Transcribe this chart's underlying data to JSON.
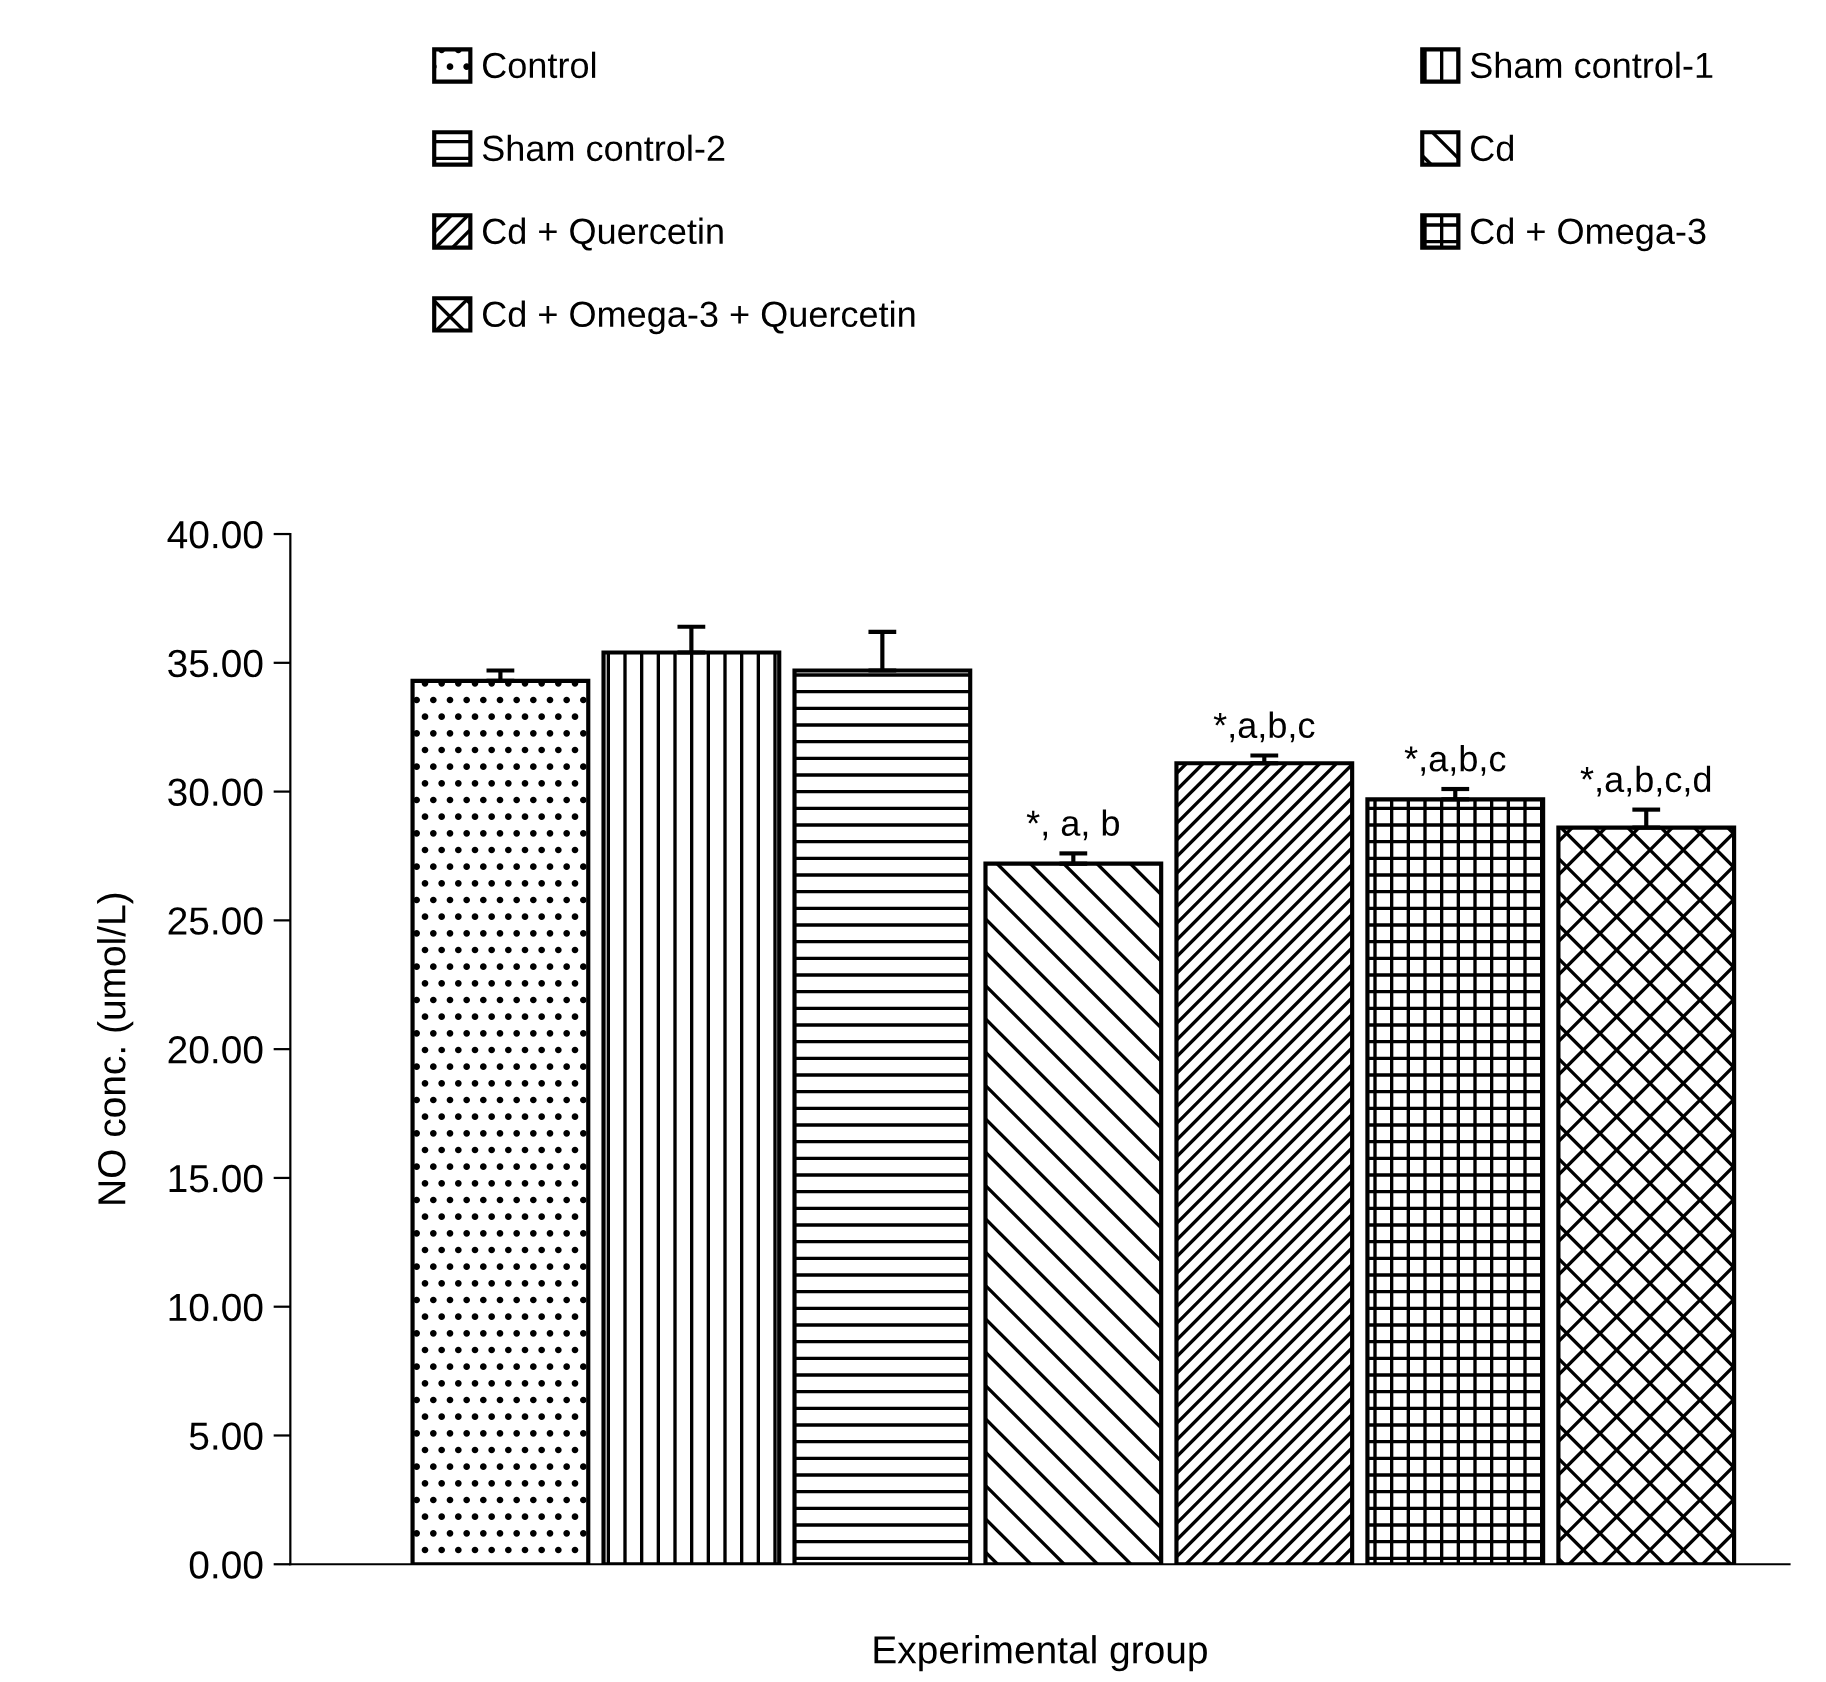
{
  "chart_data": {
    "type": "bar",
    "ylabel": "NO conc. (umol/L)",
    "xlabel": "Experimental group",
    "categories": [
      null,
      null,
      null,
      null,
      null,
      null,
      null
    ],
    "series": [
      {
        "name": "Control",
        "color": "#000000",
        "values": [
          34.3,
          null,
          null,
          null,
          null,
          null,
          null
        ],
        "errors": [
          0.4,
          null,
          null,
          null,
          null,
          null,
          null
        ]
      },
      {
        "name": "Sham control-1",
        "color": "#000000",
        "values": [
          null,
          35.4,
          null,
          null,
          null,
          null,
          null
        ],
        "errors": [
          null,
          1.0,
          null,
          null,
          null,
          null,
          null
        ]
      },
      {
        "name": "Sham control-2",
        "color": "#000000",
        "values": [
          null,
          null,
          34.7,
          null,
          null,
          null,
          null
        ],
        "errors": [
          null,
          null,
          1.5,
          null,
          null,
          null,
          null
        ]
      },
      {
        "name": "Cd",
        "color": "#000000",
        "values": [
          null,
          null,
          null,
          27.2,
          null,
          null,
          null
        ],
        "errors": [
          null,
          null,
          null,
          0.4,
          null,
          null,
          null
        ],
        "value_labels": [
          null,
          null,
          null,
          "*, a, b",
          null,
          null,
          null
        ]
      },
      {
        "name": "Cd + Quercetin",
        "color": "#000000",
        "values": [
          null,
          null,
          null,
          null,
          31.1,
          null,
          null
        ],
        "errors": [
          null,
          null,
          null,
          null,
          0.3,
          null,
          null
        ],
        "value_labels": [
          null,
          null,
          null,
          null,
          "*,a,b,c",
          null,
          null
        ]
      },
      {
        "name": "Cd + Omega-3",
        "color": "#000000",
        "values": [
          null,
          null,
          null,
          null,
          null,
          29.7,
          null
        ],
        "errors": [
          null,
          null,
          null,
          null,
          null,
          0.4,
          null
        ],
        "value_labels": [
          null,
          null,
          null,
          null,
          null,
          "*,a,b,c",
          null
        ]
      },
      {
        "name": "Cd + Omega-3 + Quercetin",
        "color": "#000000",
        "values": [
          null,
          null,
          null,
          null,
          null,
          null,
          28.6
        ],
        "errors": [
          null,
          null,
          null,
          null,
          null,
          null,
          0.7
        ],
        "value_labels": [
          null,
          null,
          null,
          null,
          null,
          null,
          "*,a,b,c,d"
        ]
      }
    ],
    "ylim": [
      0,
      40
    ],
    "yticks": [
      {
        "value": 0,
        "label": "0.00"
      },
      {
        "value": 5,
        "label": "5.00"
      },
      {
        "value": 10,
        "label": "10.00"
      },
      {
        "value": 15,
        "label": "15.00"
      },
      {
        "value": 20,
        "label": "20.00"
      },
      {
        "value": 25,
        "label": "25.00"
      },
      {
        "value": 30,
        "label": "30.00"
      },
      {
        "value": 35,
        "label": "35.00"
      },
      {
        "value": 40,
        "label": "40.00"
      }
    ],
    "grid": false,
    "legend": "top"
  }
}
